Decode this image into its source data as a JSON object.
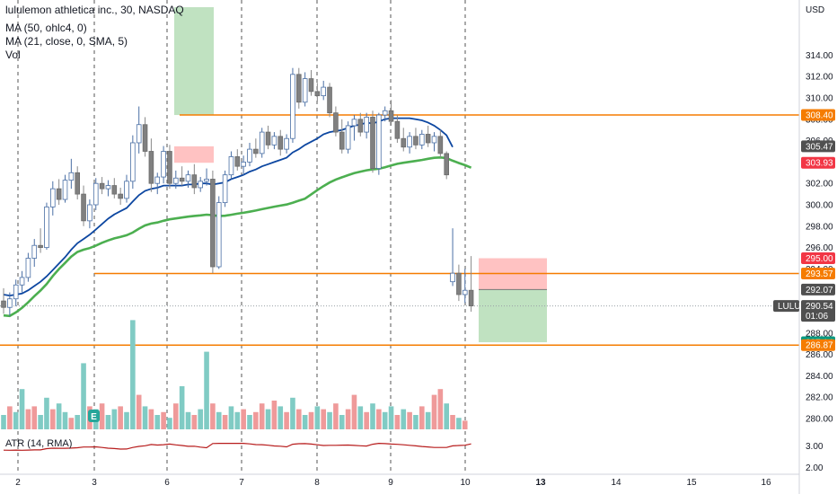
{
  "header": {
    "title": "lululemon athletica inc., 30, NASDAQ",
    "indicators": [
      "MA (50, ohlc4, 0)",
      "MA (21, close, 0, SMA, 5)",
      "Vol"
    ]
  },
  "atr": {
    "label": "ATR (14, RMA)",
    "axis_ticks": [
      "3.00",
      "2.00"
    ]
  },
  "price_tags": [
    {
      "label": "308.40",
      "value": 308.4,
      "color": "#f57c00"
    },
    {
      "label": "305.47",
      "value": 305.47,
      "color": "#505050"
    },
    {
      "label": "303.93",
      "value": 303.93,
      "color": "#f23645"
    },
    {
      "label": "295.00",
      "value": 295.0,
      "color": "#f23645"
    },
    {
      "label": "293.57",
      "value": 293.57,
      "color": "#f57c00"
    },
    {
      "label": "292.07",
      "value": 292.07,
      "color": "#505050"
    },
    {
      "label": "290.54",
      "value": 290.54,
      "color": "#505050",
      "sub": "01:06"
    },
    {
      "label": "287.14",
      "value": 287.14,
      "color": "#089981"
    },
    {
      "label": "286.87",
      "value": 286.87,
      "color": "#f57c00"
    }
  ],
  "symbol_tag": "LULU",
  "colors": {
    "candle_up": "#ffffff",
    "candle_down": "#808080",
    "wick": "#888888",
    "ma50": "#4caf50",
    "ma21": "#0d47a1",
    "hline": "#f57c00",
    "vol_up": "#80cbc4",
    "vol_down": "#ef9a9a",
    "atr": "#b71c1c",
    "target_zone": "#a5d6a7",
    "stop_zone": "#ffb3b3"
  },
  "chart_data": {
    "type": "candlestick",
    "symbol": "LULU",
    "currency": "USD",
    "ylim": [
      279,
      315
    ],
    "y_ticks": [
      280,
      282,
      284,
      286,
      288,
      290,
      292,
      294,
      296,
      298,
      300,
      302,
      304,
      306,
      308,
      310,
      312,
      314
    ],
    "x_labels": [
      "2",
      "3",
      "6",
      "7",
      "8",
      "9",
      "10",
      "13",
      "14",
      "15",
      "16"
    ],
    "horizontal_lines": [
      308.4,
      293.57,
      286.87
    ],
    "last_price": 290.54,
    "candles": [
      {
        "o": 291.0,
        "h": 292.2,
        "l": 289.8,
        "c": 290.4
      },
      {
        "o": 290.4,
        "h": 291.8,
        "l": 289.6,
        "c": 291.2
      },
      {
        "o": 291.2,
        "h": 293.0,
        "l": 290.5,
        "c": 292.5
      },
      {
        "o": 292.5,
        "h": 293.8,
        "l": 291.8,
        "c": 293.2
      },
      {
        "o": 293.2,
        "h": 295.5,
        "l": 292.8,
        "c": 295.0
      },
      {
        "o": 295.0,
        "h": 296.8,
        "l": 294.2,
        "c": 296.2
      },
      {
        "o": 296.2,
        "h": 297.8,
        "l": 295.5,
        "c": 296.0
      },
      {
        "o": 296.0,
        "h": 300.2,
        "l": 295.8,
        "c": 299.8
      },
      {
        "o": 299.8,
        "h": 302.2,
        "l": 299.0,
        "c": 301.5
      },
      {
        "o": 301.5,
        "h": 302.4,
        "l": 300.0,
        "c": 300.5
      },
      {
        "o": 300.5,
        "h": 302.8,
        "l": 300.2,
        "c": 302.3
      },
      {
        "o": 302.3,
        "h": 304.3,
        "l": 301.5,
        "c": 303.0
      },
      {
        "o": 303.0,
        "h": 303.6,
        "l": 300.5,
        "c": 301.0
      },
      {
        "o": 301.0,
        "h": 301.8,
        "l": 298.0,
        "c": 298.5
      },
      {
        "o": 298.5,
        "h": 300.5,
        "l": 297.8,
        "c": 300.0
      },
      {
        "o": 300.0,
        "h": 302.5,
        "l": 299.5,
        "c": 302.0
      },
      {
        "o": 302.0,
        "h": 302.6,
        "l": 301.0,
        "c": 301.5
      },
      {
        "o": 301.5,
        "h": 302.3,
        "l": 300.8,
        "c": 301.8
      },
      {
        "o": 301.8,
        "h": 302.5,
        "l": 300.6,
        "c": 301.0
      },
      {
        "o": 301.0,
        "h": 301.6,
        "l": 300.0,
        "c": 300.6
      },
      {
        "o": 300.6,
        "h": 302.8,
        "l": 300.2,
        "c": 302.2
      },
      {
        "o": 302.2,
        "h": 306.5,
        "l": 301.5,
        "c": 305.8
      },
      {
        "o": 305.8,
        "h": 309.2,
        "l": 304.8,
        "c": 307.5
      },
      {
        "o": 307.5,
        "h": 308.2,
        "l": 304.5,
        "c": 305.0
      },
      {
        "o": 305.0,
        "h": 306.2,
        "l": 301.2,
        "c": 302.0
      },
      {
        "o": 302.0,
        "h": 303.0,
        "l": 301.0,
        "c": 302.6
      },
      {
        "o": 302.6,
        "h": 305.5,
        "l": 302.0,
        "c": 305.0
      },
      {
        "o": 305.0,
        "h": 305.6,
        "l": 301.5,
        "c": 302.0
      },
      {
        "o": 302.0,
        "h": 303.2,
        "l": 301.5,
        "c": 302.5
      },
      {
        "o": 302.5,
        "h": 303.6,
        "l": 301.8,
        "c": 302.2
      },
      {
        "o": 302.2,
        "h": 303.2,
        "l": 301.6,
        "c": 302.8
      },
      {
        "o": 302.8,
        "h": 303.8,
        "l": 301.0,
        "c": 301.6
      },
      {
        "o": 301.6,
        "h": 302.6,
        "l": 301.2,
        "c": 302.2
      },
      {
        "o": 302.2,
        "h": 303.4,
        "l": 301.8,
        "c": 302.4
      },
      {
        "o": 302.4,
        "h": 303.2,
        "l": 293.6,
        "c": 294.2
      },
      {
        "o": 294.2,
        "h": 300.8,
        "l": 294.0,
        "c": 300.2
      },
      {
        "o": 300.2,
        "h": 303.2,
        "l": 299.8,
        "c": 302.8
      },
      {
        "o": 302.8,
        "h": 305.0,
        "l": 302.4,
        "c": 304.5
      },
      {
        "o": 304.5,
        "h": 305.2,
        "l": 303.2,
        "c": 303.6
      },
      {
        "o": 303.6,
        "h": 304.6,
        "l": 302.8,
        "c": 304.0
      },
      {
        "o": 304.0,
        "h": 305.8,
        "l": 303.6,
        "c": 305.2
      },
      {
        "o": 305.2,
        "h": 306.2,
        "l": 304.4,
        "c": 304.8
      },
      {
        "o": 304.8,
        "h": 307.2,
        "l": 304.4,
        "c": 306.8
      },
      {
        "o": 306.8,
        "h": 307.4,
        "l": 305.2,
        "c": 305.6
      },
      {
        "o": 305.6,
        "h": 306.8,
        "l": 305.2,
        "c": 306.4
      },
      {
        "o": 306.4,
        "h": 307.0,
        "l": 304.6,
        "c": 305.2
      },
      {
        "o": 305.2,
        "h": 306.6,
        "l": 304.8,
        "c": 306.2
      },
      {
        "o": 306.2,
        "h": 312.8,
        "l": 305.8,
        "c": 312.2
      },
      {
        "o": 312.2,
        "h": 312.8,
        "l": 309.0,
        "c": 309.6
      },
      {
        "o": 309.6,
        "h": 312.4,
        "l": 309.2,
        "c": 311.8
      },
      {
        "o": 311.8,
        "h": 312.6,
        "l": 310.2,
        "c": 310.6
      },
      {
        "o": 310.6,
        "h": 311.4,
        "l": 309.6,
        "c": 310.2
      },
      {
        "o": 310.2,
        "h": 311.6,
        "l": 309.8,
        "c": 311.0
      },
      {
        "o": 311.0,
        "h": 311.4,
        "l": 308.2,
        "c": 308.6
      },
      {
        "o": 308.6,
        "h": 309.2,
        "l": 306.4,
        "c": 306.8
      },
      {
        "o": 306.8,
        "h": 308.0,
        "l": 304.8,
        "c": 305.2
      },
      {
        "o": 305.2,
        "h": 307.8,
        "l": 304.8,
        "c": 307.4
      },
      {
        "o": 307.4,
        "h": 308.4,
        "l": 306.0,
        "c": 308.0
      },
      {
        "o": 308.0,
        "h": 308.6,
        "l": 306.4,
        "c": 306.8
      },
      {
        "o": 306.8,
        "h": 308.6,
        "l": 306.2,
        "c": 308.2
      },
      {
        "o": 308.2,
        "h": 308.8,
        "l": 303.0,
        "c": 303.4
      },
      {
        "o": 303.4,
        "h": 308.6,
        "l": 302.8,
        "c": 308.4
      },
      {
        "o": 308.4,
        "h": 309.2,
        "l": 307.8,
        "c": 308.8
      },
      {
        "o": 308.8,
        "h": 309.8,
        "l": 307.4,
        "c": 307.8
      },
      {
        "o": 307.8,
        "h": 308.4,
        "l": 305.8,
        "c": 306.2
      },
      {
        "o": 306.2,
        "h": 307.2,
        "l": 305.0,
        "c": 305.4
      },
      {
        "o": 305.4,
        "h": 306.8,
        "l": 304.8,
        "c": 306.4
      },
      {
        "o": 306.4,
        "h": 307.2,
        "l": 305.2,
        "c": 305.6
      },
      {
        "o": 305.6,
        "h": 307.0,
        "l": 305.2,
        "c": 306.6
      },
      {
        "o": 306.6,
        "h": 307.4,
        "l": 305.4,
        "c": 305.8
      },
      {
        "o": 305.8,
        "h": 306.8,
        "l": 305.0,
        "c": 306.4
      },
      {
        "o": 306.4,
        "h": 307.0,
        "l": 304.4,
        "c": 304.8
      },
      {
        "o": 304.8,
        "h": 305.0,
        "l": 302.4,
        "c": 302.8
      },
      {
        "o": 292.8,
        "h": 297.8,
        "l": 292.4,
        "c": 293.6
      },
      {
        "o": 293.6,
        "h": 294.4,
        "l": 291.0,
        "c": 291.6
      },
      {
        "o": 291.6,
        "h": 294.0,
        "l": 290.8,
        "c": 292.0
      },
      {
        "o": 292.0,
        "h": 295.2,
        "l": 290.0,
        "c": 290.54
      }
    ],
    "volume": [
      {
        "v": 1.0,
        "up": true
      },
      {
        "v": 1.6,
        "up": false
      },
      {
        "v": 1.2,
        "up": true
      },
      {
        "v": 2.8,
        "up": true
      },
      {
        "v": 1.4,
        "up": false
      },
      {
        "v": 1.6,
        "up": false
      },
      {
        "v": 1.0,
        "up": true
      },
      {
        "v": 2.2,
        "up": true
      },
      {
        "v": 1.4,
        "up": false
      },
      {
        "v": 1.8,
        "up": true
      },
      {
        "v": 1.2,
        "up": true
      },
      {
        "v": 0.8,
        "up": false
      },
      {
        "v": 1.0,
        "up": true
      },
      {
        "v": 4.6,
        "up": true
      },
      {
        "v": 1.6,
        "up": false
      },
      {
        "v": 1.4,
        "up": true
      },
      {
        "v": 1.8,
        "up": false
      },
      {
        "v": 1.0,
        "up": true
      },
      {
        "v": 1.4,
        "up": true
      },
      {
        "v": 1.6,
        "up": false
      },
      {
        "v": 1.2,
        "up": true
      },
      {
        "v": 7.6,
        "up": true
      },
      {
        "v": 2.4,
        "up": false
      },
      {
        "v": 1.6,
        "up": true
      },
      {
        "v": 1.4,
        "up": false
      },
      {
        "v": 1.0,
        "up": true
      },
      {
        "v": 1.2,
        "up": false
      },
      {
        "v": 0.8,
        "up": true
      },
      {
        "v": 1.8,
        "up": false
      },
      {
        "v": 3.0,
        "up": true
      },
      {
        "v": 1.2,
        "up": true
      },
      {
        "v": 1.0,
        "up": false
      },
      {
        "v": 1.4,
        "up": true
      },
      {
        "v": 5.4,
        "up": true
      },
      {
        "v": 1.8,
        "up": false
      },
      {
        "v": 1.2,
        "up": true
      },
      {
        "v": 1.0,
        "up": false
      },
      {
        "v": 1.6,
        "up": true
      },
      {
        "v": 1.2,
        "up": true
      },
      {
        "v": 1.4,
        "up": false
      },
      {
        "v": 1.0,
        "up": true
      },
      {
        "v": 1.2,
        "up": false
      },
      {
        "v": 1.8,
        "up": false
      },
      {
        "v": 1.4,
        "up": true
      },
      {
        "v": 2.0,
        "up": false
      },
      {
        "v": 1.6,
        "up": true
      },
      {
        "v": 1.2,
        "up": false
      },
      {
        "v": 2.2,
        "up": true
      },
      {
        "v": 1.4,
        "up": false
      },
      {
        "v": 1.0,
        "up": true
      },
      {
        "v": 1.2,
        "up": false
      },
      {
        "v": 1.6,
        "up": true
      },
      {
        "v": 1.4,
        "up": false
      },
      {
        "v": 1.2,
        "up": true
      },
      {
        "v": 1.8,
        "up": false
      },
      {
        "v": 1.0,
        "up": true
      },
      {
        "v": 1.4,
        "up": false
      },
      {
        "v": 2.4,
        "up": false
      },
      {
        "v": 1.6,
        "up": true
      },
      {
        "v": 1.2,
        "up": false
      },
      {
        "v": 1.8,
        "up": true
      },
      {
        "v": 1.4,
        "up": false
      },
      {
        "v": 1.2,
        "up": true
      },
      {
        "v": 1.6,
        "up": true
      },
      {
        "v": 1.0,
        "up": false
      },
      {
        "v": 1.4,
        "up": true
      },
      {
        "v": 1.2,
        "up": false
      },
      {
        "v": 1.0,
        "up": true
      },
      {
        "v": 1.6,
        "up": false
      },
      {
        "v": 1.2,
        "up": true
      },
      {
        "v": 2.4,
        "up": false
      },
      {
        "v": 2.8,
        "up": false
      },
      {
        "v": 1.8,
        "up": true
      },
      {
        "v": 1.0,
        "up": false
      },
      {
        "v": 0.8,
        "up": true
      },
      {
        "v": 0.6,
        "up": false
      }
    ],
    "ma21": [
      291.6,
      291.5,
      291.6,
      291.7,
      292.0,
      292.4,
      292.8,
      293.3,
      293.9,
      294.5,
      295.1,
      295.8,
      296.4,
      296.8,
      297.2,
      297.7,
      298.2,
      298.7,
      299.1,
      299.4,
      299.7,
      300.3,
      300.9,
      301.3,
      301.5,
      301.6,
      301.8,
      301.8,
      301.8,
      301.8,
      301.9,
      301.9,
      302.0,
      302.0,
      301.9,
      302.0,
      302.1,
      302.4,
      302.6,
      302.8,
      303.1,
      303.3,
      303.6,
      303.8,
      304.0,
      304.2,
      304.4,
      304.9,
      305.2,
      305.6,
      305.9,
      306.2,
      306.6,
      306.8,
      306.9,
      307.0,
      307.2,
      307.4,
      307.5,
      307.7,
      307.6,
      307.8,
      308.0,
      308.1,
      308.1,
      308.1,
      308.1,
      308.0,
      307.9,
      307.7,
      307.4,
      307.0,
      306.5,
      305.4
    ]
  }
}
